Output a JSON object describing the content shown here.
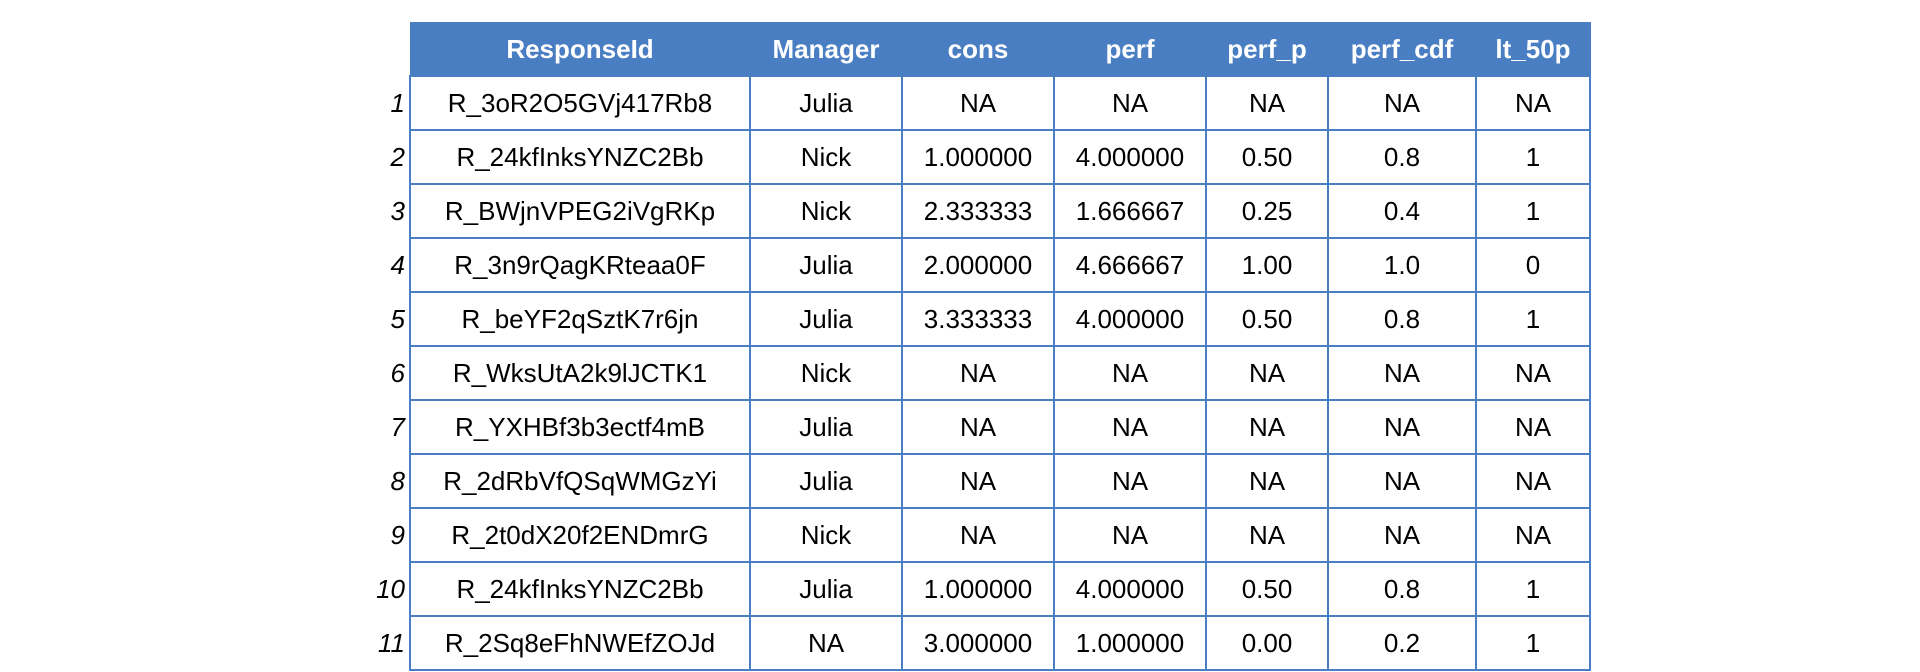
{
  "table": {
    "headers": [
      "ResponseId",
      "Manager",
      "cons",
      "perf",
      "perf_p",
      "perf_cdf",
      "lt_50p"
    ],
    "rows": [
      {
        "index": "1",
        "cells": [
          "R_3oR2O5GVj417Rb8",
          "Julia",
          "NA",
          "NA",
          "NA",
          "NA",
          "NA"
        ]
      },
      {
        "index": "2",
        "cells": [
          "R_24kfInksYNZC2Bb",
          "Nick",
          "1.000000",
          "4.000000",
          "0.50",
          "0.8",
          "1"
        ]
      },
      {
        "index": "3",
        "cells": [
          "R_BWjnVPEG2iVgRKp",
          "Nick",
          "2.333333",
          "1.666667",
          "0.25",
          "0.4",
          "1"
        ]
      },
      {
        "index": "4",
        "cells": [
          "R_3n9rQagKRteaa0F",
          "Julia",
          "2.000000",
          "4.666667",
          "1.00",
          "1.0",
          "0"
        ]
      },
      {
        "index": "5",
        "cells": [
          "R_beYF2qSztK7r6jn",
          "Julia",
          "3.333333",
          "4.000000",
          "0.50",
          "0.8",
          "1"
        ]
      },
      {
        "index": "6",
        "cells": [
          "R_WksUtA2k9lJCTK1",
          "Nick",
          "NA",
          "NA",
          "NA",
          "NA",
          "NA"
        ]
      },
      {
        "index": "7",
        "cells": [
          "R_YXHBf3b3ectf4mB",
          "Julia",
          "NA",
          "NA",
          "NA",
          "NA",
          "NA"
        ]
      },
      {
        "index": "8",
        "cells": [
          "R_2dRbVfQSqWMGzYi",
          "Julia",
          "NA",
          "NA",
          "NA",
          "NA",
          "NA"
        ]
      },
      {
        "index": "9",
        "cells": [
          "R_2t0dX20f2ENDmrG",
          "Nick",
          "NA",
          "NA",
          "NA",
          "NA",
          "NA"
        ]
      },
      {
        "index": "10",
        "cells": [
          "R_24kfInksYNZC2Bb",
          "Julia",
          "1.000000",
          "4.000000",
          "0.50",
          "0.8",
          "1"
        ]
      },
      {
        "index": "11",
        "cells": [
          "R_2Sq8eFhNWEfZOJd",
          "NA",
          "3.000000",
          "1.000000",
          "0.00",
          "0.2",
          "1"
        ]
      }
    ]
  },
  "colors": {
    "header_background": "#4a7ec3",
    "header_text": "#ffffff",
    "border": "#4a7ec3"
  }
}
